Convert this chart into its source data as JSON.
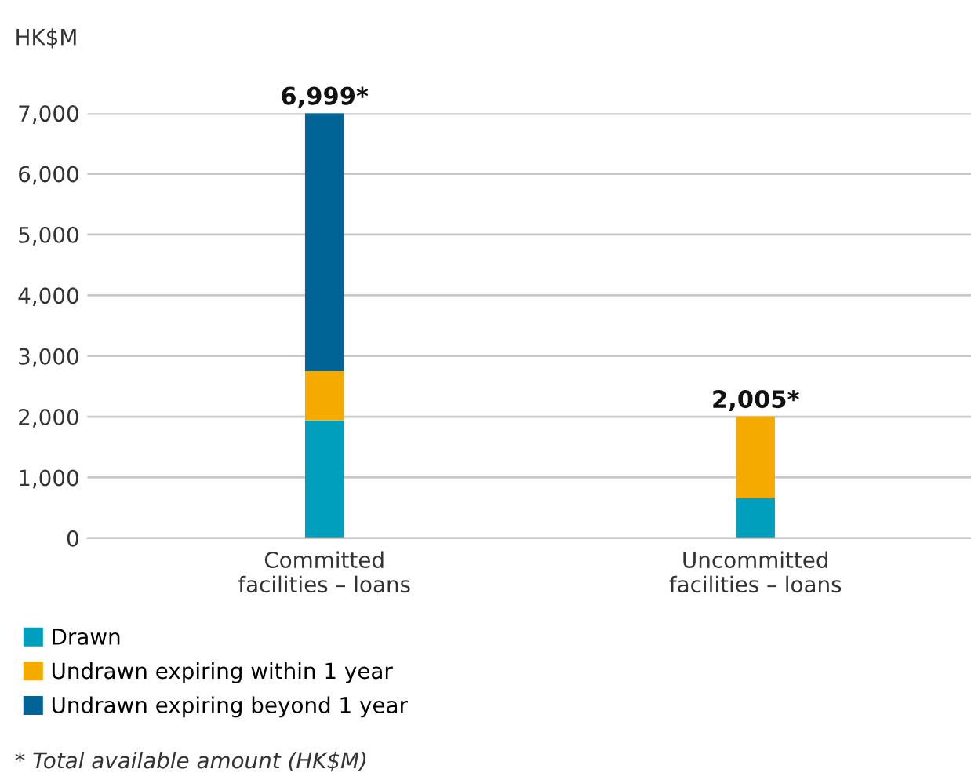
{
  "chart_data": {
    "type": "bar",
    "stacked": true,
    "ylabel": "HK$M",
    "categories": [
      "Committed\nfacilities – loans",
      "Uncommitted\nfacilities – loans"
    ],
    "series": [
      {
        "name": "Drawn",
        "color": "#009fbd",
        "values": [
          1940,
          660
        ]
      },
      {
        "name": "Undrawn expiring within 1 year",
        "color": "#f5aa00",
        "values": [
          810,
          1345
        ]
      },
      {
        "name": "Undrawn expiring beyond 1 year",
        "color": "#006496",
        "values": [
          4249,
          null
        ]
      }
    ],
    "totals": [
      "6,999*",
      "2,005*"
    ],
    "ylim": [
      0,
      7000
    ],
    "yticks": [
      {
        "value": 0,
        "label": "0"
      },
      {
        "value": 1000,
        "label": "1,000"
      },
      {
        "value": 2000,
        "label": "2,000"
      },
      {
        "value": 3000,
        "label": "3,000"
      },
      {
        "value": 4000,
        "label": "4,000"
      },
      {
        "value": 5000,
        "label": "5,000"
      },
      {
        "value": 6000,
        "label": "6,000"
      },
      {
        "value": 7000,
        "label": "7,000"
      }
    ],
    "grid": "y",
    "legend": "bottom left",
    "annotations": [
      "* Total available amount (HK$M)"
    ]
  }
}
